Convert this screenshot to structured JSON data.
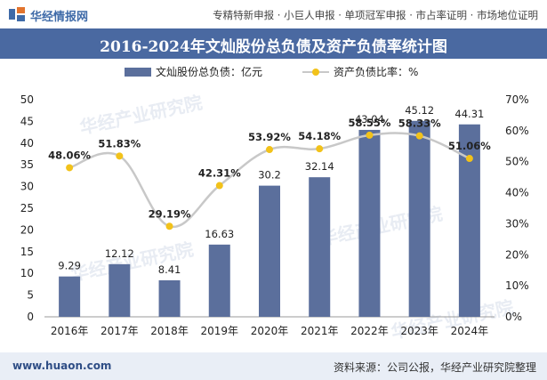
{
  "header": {
    "site_name": "华经情报网",
    "tagline": "专精特新申报 · 小巨人申报 · 单项冠军申报 · 市占率证明 · 市场地位证明"
  },
  "footer": {
    "url": "www.huaon.com",
    "source": "资料来源：公司公报，华经产业研究院整理"
  },
  "watermark": "华经产业研究院",
  "colors": {
    "bar": "#5b6f9c",
    "line": "#c8c8c8",
    "marker": "#f2c21a",
    "title_bg": "#4a69a1"
  },
  "chart_data": {
    "type": "bar",
    "title": "2016-2024年文灿股份总负债及资产负债率统计图",
    "categories": [
      "2016年",
      "2017年",
      "2018年",
      "2019年",
      "2020年",
      "2021年",
      "2022年",
      "2023年",
      "2024年"
    ],
    "series": [
      {
        "name": "文灿股份总负债：亿元",
        "type": "bar",
        "axis": "left",
        "values": [
          9.29,
          12.12,
          8.41,
          16.63,
          30.2,
          32.14,
          43.04,
          45.12,
          44.31
        ],
        "labels": [
          "9.29",
          "12.12",
          "8.41",
          "16.63",
          "30.2",
          "32.14",
          "43.04",
          "45.12",
          "44.31"
        ]
      },
      {
        "name": "资产负债比率：%",
        "type": "line",
        "axis": "right",
        "smooth": true,
        "values": [
          48.06,
          51.83,
          29.19,
          42.31,
          53.92,
          54.18,
          58.55,
          58.33,
          51.06
        ],
        "labels": [
          "48.06%",
          "51.83%",
          "29.19%",
          "42.31%",
          "53.92%",
          "54.18%",
          "58.55%",
          "58.33%",
          "51.06%"
        ]
      }
    ],
    "y_left": {
      "min": 0,
      "max": 50,
      "ticks": [
        "0",
        "5",
        "10",
        "15",
        "20",
        "25",
        "30",
        "35",
        "40",
        "45",
        "50"
      ]
    },
    "y_right": {
      "min": 0,
      "max": 70,
      "ticks": [
        "0%",
        "10%",
        "20%",
        "30%",
        "40%",
        "50%",
        "60%",
        "70%"
      ]
    },
    "legend_position": "top",
    "grid": false
  }
}
